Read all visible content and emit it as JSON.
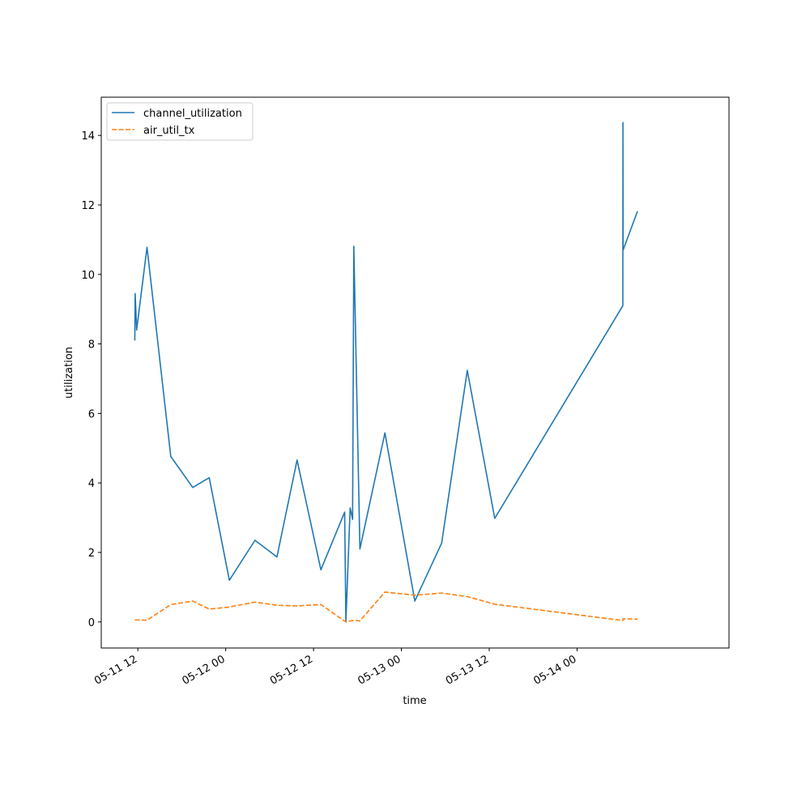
{
  "chart_data": {
    "type": "line",
    "xlabel": "time",
    "ylabel": "utilization",
    "xlim": [
      "2023-05-11 07:00",
      "2023-05-14 20:45"
    ],
    "ylim": [
      -0.75,
      15.1
    ],
    "grid": false,
    "legend_position": "upper-left",
    "x_ticks": [
      {
        "value": "2023-05-11 12:00",
        "label": "05-11 12"
      },
      {
        "value": "2023-05-12 00:00",
        "label": "05-12 00"
      },
      {
        "value": "2023-05-12 12:00",
        "label": "05-12 12"
      },
      {
        "value": "2023-05-13 00:00",
        "label": "05-13 00"
      },
      {
        "value": "2023-05-13 12:00",
        "label": "05-13 12"
      },
      {
        "value": "2023-05-14 00:00",
        "label": "05-14 00"
      }
    ],
    "y_ticks": [
      0,
      2,
      4,
      6,
      8,
      10,
      12,
      14
    ],
    "series": [
      {
        "name": "channel_utilization",
        "color": "#1f77b4",
        "style": "solid",
        "points": [
          {
            "x": "2023-05-11 11:35",
            "y": 8.1
          },
          {
            "x": "2023-05-11 11:38",
            "y": 9.45
          },
          {
            "x": "2023-05-11 11:50",
            "y": 8.4
          },
          {
            "x": "2023-05-11 13:15",
            "y": 10.78
          },
          {
            "x": "2023-05-11 16:30",
            "y": 4.76
          },
          {
            "x": "2023-05-11 19:30",
            "y": 3.87
          },
          {
            "x": "2023-05-11 21:45",
            "y": 4.15
          },
          {
            "x": "2023-05-12 00:30",
            "y": 1.2
          },
          {
            "x": "2023-05-12 04:00",
            "y": 2.35
          },
          {
            "x": "2023-05-12 07:00",
            "y": 1.87
          },
          {
            "x": "2023-05-12 09:45",
            "y": 4.66
          },
          {
            "x": "2023-05-12 13:00",
            "y": 1.5
          },
          {
            "x": "2023-05-12 16:15",
            "y": 3.16
          },
          {
            "x": "2023-05-12 16:25",
            "y": 0.02
          },
          {
            "x": "2023-05-12 17:00",
            "y": 3.28
          },
          {
            "x": "2023-05-12 17:20",
            "y": 2.95
          },
          {
            "x": "2023-05-12 17:30",
            "y": 10.81
          },
          {
            "x": "2023-05-12 18:20",
            "y": 2.1
          },
          {
            "x": "2023-05-12 21:45",
            "y": 5.44
          },
          {
            "x": "2023-05-13 01:50",
            "y": 0.6
          },
          {
            "x": "2023-05-13 05:30",
            "y": 2.27
          },
          {
            "x": "2023-05-13 09:00",
            "y": 7.24
          },
          {
            "x": "2023-05-13 12:45",
            "y": 2.98
          },
          {
            "x": "2023-05-14 06:15",
            "y": 9.1
          },
          {
            "x": "2023-05-14 06:16",
            "y": 14.37
          },
          {
            "x": "2023-05-14 06:17",
            "y": 10.7
          },
          {
            "x": "2023-05-14 08:15",
            "y": 11.82
          }
        ]
      },
      {
        "name": "air_util_tx",
        "color": "#ff7f0e",
        "style": "dashed",
        "points": [
          {
            "x": "2023-05-11 11:35",
            "y": 0.06
          },
          {
            "x": "2023-05-11 13:15",
            "y": 0.05
          },
          {
            "x": "2023-05-11 16:30",
            "y": 0.5
          },
          {
            "x": "2023-05-11 19:30",
            "y": 0.6
          },
          {
            "x": "2023-05-11 21:45",
            "y": 0.37
          },
          {
            "x": "2023-05-12 00:30",
            "y": 0.43
          },
          {
            "x": "2023-05-12 04:00",
            "y": 0.57
          },
          {
            "x": "2023-05-12 07:00",
            "y": 0.48
          },
          {
            "x": "2023-05-12 09:45",
            "y": 0.46
          },
          {
            "x": "2023-05-12 13:00",
            "y": 0.5
          },
          {
            "x": "2023-05-12 16:25",
            "y": 0.0
          },
          {
            "x": "2023-05-12 17:30",
            "y": 0.05
          },
          {
            "x": "2023-05-12 18:20",
            "y": 0.03
          },
          {
            "x": "2023-05-12 21:45",
            "y": 0.86
          },
          {
            "x": "2023-05-13 01:50",
            "y": 0.77
          },
          {
            "x": "2023-05-13 05:30",
            "y": 0.83
          },
          {
            "x": "2023-05-13 09:00",
            "y": 0.73
          },
          {
            "x": "2023-05-13 12:45",
            "y": 0.51
          },
          {
            "x": "2023-05-14 06:15",
            "y": 0.04
          },
          {
            "x": "2023-05-14 06:17",
            "y": 0.09
          },
          {
            "x": "2023-05-14 08:15",
            "y": 0.08
          }
        ]
      }
    ]
  }
}
